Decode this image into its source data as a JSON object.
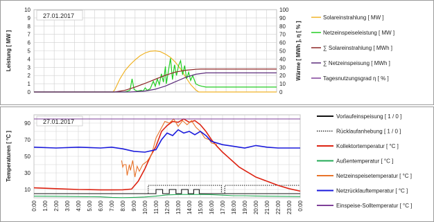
{
  "chart_data": [
    {
      "type": "line",
      "date_label": "27.01.2017",
      "ylabel": "Leistung [ MW ]",
      "ylabel_right": "Wärme [ MWh ], η [ % ]",
      "ylim": [
        0,
        10
      ],
      "yticks": [
        "0",
        "1",
        "2",
        "3",
        "4",
        "5",
        "6",
        "7",
        "8",
        "9",
        "10"
      ],
      "ylim_right": [
        0,
        100
      ],
      "yticks_right": [
        "0",
        "10",
        "20",
        "30",
        "40",
        "50",
        "60",
        "70",
        "80",
        "90",
        "100"
      ],
      "xlim": [
        0,
        24
      ],
      "grid": true,
      "legend_position": "right",
      "series": [
        {
          "name": "Solareinstrahlung [ MW ]",
          "color": "#f0b428",
          "axis": "left",
          "x": [
            0,
            7.8,
            8.0,
            8.5,
            9,
            9.5,
            10,
            10.5,
            11,
            11.5,
            12,
            12.5,
            13,
            13.5,
            14,
            14.5,
            15,
            15.5,
            16,
            16.3,
            24
          ],
          "y": [
            0,
            0,
            0.3,
            1.6,
            2.6,
            3.3,
            3.9,
            4.4,
            4.75,
            4.95,
            5.0,
            4.9,
            4.6,
            4.2,
            3.6,
            2.8,
            1.8,
            0.9,
            0.25,
            0,
            0
          ]
        },
        {
          "name": "Netzeinspeiseleistung [ MW ]",
          "color": "#22cc22",
          "axis": "left",
          "x": [
            0,
            9,
            9.5,
            9.7,
            9.9,
            10.2,
            10.6,
            10.8,
            11,
            11.2,
            11.5,
            11.8,
            12,
            12.2,
            12.4,
            12.6,
            12.8,
            13,
            13.1,
            13.3,
            13.5,
            13.7,
            13.9,
            14.1,
            14.3,
            14.5,
            14.7,
            14.9,
            15.1,
            15.3,
            15.5,
            15.7,
            16,
            16.3,
            16.6,
            17,
            24
          ],
          "y": [
            0,
            0,
            0.2,
            1.6,
            0.3,
            0.1,
            0.2,
            0.1,
            0.5,
            0.2,
            0.4,
            1.3,
            0.7,
            1.6,
            0.9,
            2.2,
            1.2,
            3.1,
            1.0,
            2.6,
            4.1,
            1.5,
            3.3,
            2.0,
            3.2,
            3.8,
            2.1,
            3.2,
            1.6,
            2.4,
            1.4,
            2.0,
            1.0,
            0.8,
            0.7,
            0.6,
            0.6
          ]
        },
        {
          "name": "∑ Solareinstrahlung [ MWh ]",
          "color": "#8b2222",
          "axis": "right",
          "x": [
            0,
            8,
            9,
            10,
            11,
            12,
            13,
            14,
            15,
            16,
            16.5,
            24
          ],
          "y": [
            0,
            0,
            2,
            6,
            10.5,
            15.5,
            20.3,
            24.2,
            26.4,
            27.6,
            27.8,
            27.8
          ]
        },
        {
          "name": "∑ Netzeinspeisung [ MWh ]",
          "color": "#5a2a7a",
          "axis": "right",
          "x": [
            0,
            9.5,
            10,
            11,
            12,
            13,
            14,
            15,
            16,
            17,
            24
          ],
          "y": [
            0,
            0,
            0.3,
            1.2,
            3.4,
            7.2,
            12.5,
            17.8,
            21.5,
            23.2,
            23.2
          ]
        },
        {
          "name": "Tagesnutzungsgrad η [ % ]",
          "color": "#7e3f98",
          "axis": "right",
          "x": [],
          "y": []
        }
      ]
    },
    {
      "type": "line",
      "date_label": "27.01.2017",
      "ylabel": "Temperaturen [ °C ]",
      "ylim": [
        0,
        100
      ],
      "yticks": [
        "10",
        "30",
        "50",
        "70",
        "90"
      ],
      "xlim": [
        0,
        24
      ],
      "xticks": [
        "0:00",
        "1:00",
        "2:00",
        "3:00",
        "4:00",
        "5:00",
        "6:00",
        "7:00",
        "8:00",
        "9:00",
        "10:00",
        "11:00",
        "12:00",
        "13:00",
        "14:00",
        "15:00",
        "16:00",
        "17:00",
        "18:00",
        "19:00",
        "20:00",
        "21:00",
        "22:00",
        "23:00",
        "0:00"
      ],
      "grid": true,
      "legend_position": "right",
      "series": [
        {
          "name": "Vorlaufeinspeisung [ 1 / 0 ]",
          "color": "#111111",
          "style": "solid",
          "x": [
            0,
            11,
            11,
            11.6,
            11.6,
            12.2,
            12.2,
            12.8,
            12.8,
            13.3,
            13.3,
            13.9,
            13.9,
            14.4,
            14.4,
            14.9,
            14.9,
            16.2,
            16.2,
            24
          ],
          "y": [
            5,
            5,
            10,
            10,
            5,
            5,
            10,
            10,
            5,
            5,
            10,
            10,
            5,
            5,
            10,
            10,
            5,
            5,
            5,
            5
          ]
        },
        {
          "name": "Rücklaufanhebung [ 1 / 0 ]",
          "color": "#111111",
          "style": "dotted",
          "x": [
            0,
            10.3,
            10.3,
            16.9,
            16.9,
            17.2,
            17.2,
            24
          ],
          "y": [
            5,
            5,
            15,
            15,
            5,
            5,
            15,
            15
          ]
        },
        {
          "name": "Kollektortemperatur [ °C ]",
          "color": "#dd2211",
          "style": "solid",
          "x": [
            0,
            1,
            2,
            3,
            4,
            5,
            6,
            7,
            8,
            8.8,
            9.4,
            10,
            10.5,
            11,
            11.5,
            12,
            12.5,
            13,
            13.5,
            14,
            14.5,
            15,
            15.5,
            16,
            16.5,
            17,
            17.5,
            18,
            18.5,
            19,
            19.5,
            20,
            21,
            22,
            23,
            24
          ],
          "y": [
            12,
            11.5,
            11,
            10.5,
            10,
            9.8,
            9.5,
            9.5,
            9.7,
            10.5,
            20,
            35,
            50,
            62,
            80,
            87,
            92,
            91,
            95,
            91,
            93,
            88,
            80,
            70,
            62,
            55,
            49,
            43,
            37,
            33,
            29,
            25,
            20,
            15,
            11,
            8
          ]
        },
        {
          "name": "Außentemperatur [ °C ]",
          "color": "#22aa55",
          "style": "solid",
          "x": [
            0,
            2,
            4,
            6,
            7,
            8,
            9,
            10,
            11,
            12,
            13,
            14,
            15,
            16,
            17,
            18,
            19,
            20,
            22,
            24
          ],
          "y": [
            2,
            1.8,
            1.5,
            1.2,
            0.5,
            0.2,
            0.5,
            1,
            2,
            3.5,
            4,
            4,
            4,
            3.8,
            3.2,
            2.5,
            2.5,
            2.2,
            1.8,
            1.5
          ]
        },
        {
          "name": "Netzeinspeisetemperatur [ °C ]",
          "color": "#e8732a",
          "style": "solid",
          "x": [
            7.9,
            8.0,
            8.1,
            8.3,
            8.4,
            8.6,
            8.7,
            8.9,
            9.1,
            9.3,
            9.5,
            9.8,
            10.2,
            10.6,
            11,
            11.4,
            11.8,
            12.2,
            12.6,
            13,
            13.4,
            13.8,
            14.2,
            14.6,
            15,
            15.4,
            15.8,
            16,
            16.5
          ],
          "y": [
            45,
            37,
            40,
            40,
            27,
            40,
            33,
            45,
            25,
            38,
            32,
            40,
            44,
            52,
            72,
            82,
            92,
            90,
            95,
            86,
            93,
            88,
            93,
            85,
            80,
            72,
            70,
            66,
            64
          ]
        },
        {
          "name": "Netzrücklauftemperatur [ °C ]",
          "color": "#1a1adc",
          "style": "solid",
          "x": [
            0,
            2,
            4,
            6,
            7,
            8,
            9,
            10,
            11,
            11.5,
            12,
            12.5,
            13,
            13.5,
            14,
            14.5,
            15,
            15.5,
            16,
            16.5,
            17,
            18,
            19,
            20,
            21,
            22,
            23,
            24
          ],
          "y": [
            61,
            60,
            61,
            60,
            61,
            59,
            56,
            55,
            58,
            70,
            78,
            75,
            82,
            78,
            80,
            76,
            80,
            75,
            68,
            66,
            64,
            62,
            60,
            63,
            61,
            60,
            60,
            60
          ]
        },
        {
          "name": "Einspeise-Solltemperatur [ °C ]",
          "color": "#7e3f98",
          "style": "solid",
          "x": [
            0,
            24
          ],
          "y": [
            95,
            95
          ]
        }
      ]
    }
  ]
}
